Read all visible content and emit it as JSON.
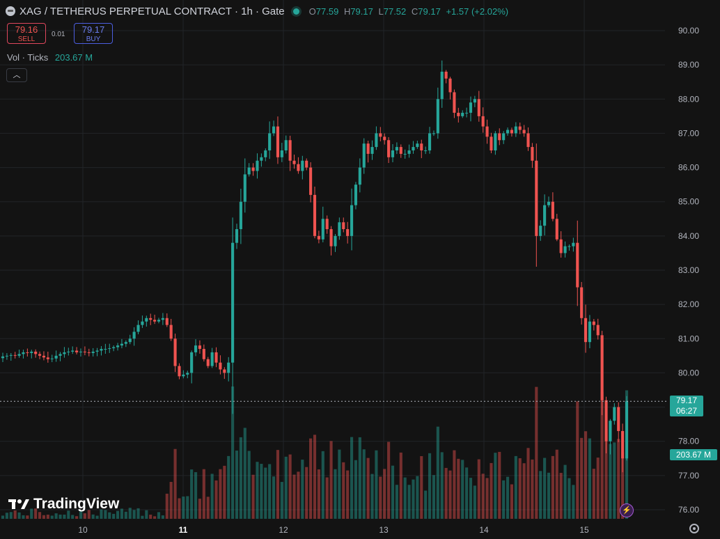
{
  "header": {
    "title": "XAG / TETHERUS PERPETUAL CONTRACT · 1h · Gate",
    "o_label": "O",
    "o": "77.59",
    "h_label": "H",
    "h": "79.17",
    "l_label": "L",
    "l": "77.52",
    "c_label": "C",
    "c": "79.17",
    "change": "+1.57 (+2.02%)"
  },
  "trade": {
    "sell_price": "79.16",
    "sell_label": "SELL",
    "spread": "0.01",
    "buy_price": "79.17",
    "buy_label": "BUY"
  },
  "volume_indicator": {
    "label": "Vol · Ticks",
    "value": "203.67 M"
  },
  "collapse_icon": "chevron-up",
  "logo_text": "TradingView",
  "price_label": {
    "price": "79.17",
    "countdown": "06:27"
  },
  "volume_label": "203.67 M",
  "colors": {
    "up": "#26a69a",
    "down": "#ef5350",
    "background": "#131313"
  },
  "chart_data": {
    "type": "candlestick",
    "interval": "1h",
    "x_ticks": [
      "10",
      "11",
      "12",
      "13",
      "14",
      "15"
    ],
    "y_ticks": [
      "76.00",
      "77.00",
      "78.00",
      "79.00",
      "80.00",
      "81.00",
      "82.00",
      "83.00",
      "84.00",
      "85.00",
      "86.00",
      "87.00",
      "88.00",
      "89.00",
      "90.00"
    ],
    "y_range": [
      76.0,
      90.0
    ],
    "last_price": 79.17,
    "closes": [
      80.48,
      80.5,
      80.52,
      80.5,
      80.55,
      80.6,
      80.58,
      80.62,
      80.55,
      80.5,
      80.45,
      80.4,
      80.42,
      80.5,
      80.55,
      80.6,
      80.62,
      80.65,
      80.6,
      80.62,
      80.6,
      80.58,
      80.62,
      80.65,
      80.7,
      80.7,
      80.72,
      80.75,
      80.8,
      80.85,
      80.9,
      81.0,
      81.2,
      81.4,
      81.5,
      81.6,
      81.55,
      81.5,
      81.55,
      81.6,
      81.4,
      81.0,
      80.2,
      79.9,
      79.95,
      80.0,
      80.6,
      80.8,
      80.7,
      80.4,
      80.2,
      80.6,
      80.3,
      80.1,
      80.0,
      80.3,
      83.8,
      84.2,
      85.0,
      85.8,
      86.0,
      85.9,
      86.2,
      86.3,
      86.5,
      87.0,
      87.2,
      86.3,
      86.5,
      86.8,
      86.2,
      86.1,
      85.9,
      86.2,
      86.0,
      85.2,
      84.0,
      83.9,
      84.5,
      84.2,
      83.7,
      84.0,
      84.4,
      84.2,
      84.0,
      84.9,
      85.5,
      86.0,
      86.7,
      86.4,
      86.6,
      87.0,
      86.9,
      86.8,
      86.3,
      86.5,
      86.6,
      86.4,
      86.4,
      86.5,
      86.6,
      86.7,
      86.5,
      86.5,
      87.0,
      87.0,
      88.0,
      88.8,
      88.6,
      88.2,
      87.6,
      87.5,
      87.6,
      87.6,
      87.9,
      88.0,
      87.5,
      87.2,
      86.9,
      86.5,
      87.0,
      86.8,
      87.0,
      87.1,
      87.0,
      87.2,
      87.1,
      87.0,
      86.6,
      86.2,
      84.0,
      84.3,
      84.9,
      85.0,
      84.5,
      83.9,
      83.5,
      83.7,
      83.7,
      83.8,
      82.5,
      81.6,
      80.9,
      81.5,
      81.4,
      81.1,
      79.2,
      78.0,
      78.6,
      79.0,
      78.3,
      77.5,
      79.17
    ],
    "volume_max_m": 380,
    "last_volume_m": 203.67
  }
}
